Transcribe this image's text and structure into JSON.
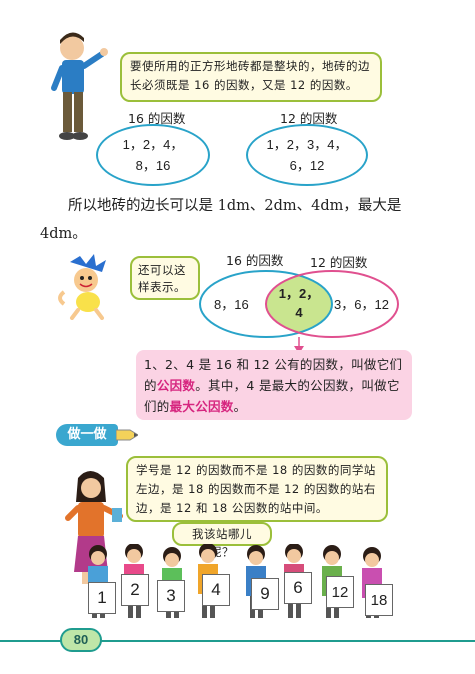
{
  "top": {
    "bubble": "要使所用的正方形地砖都是整块的，地砖的边长必须既是 16 的因数，又是 12 的因数。",
    "caption16": "16 的因数",
    "caption12": "12 的因数",
    "set16_line1": "1，2，4，",
    "set16_line2": "8，16",
    "set12_line1": "1，2，3，4，",
    "set12_line2": "6，12"
  },
  "paragraph": {
    "line1": "所以地砖的边长可以是 1dm、2dm、4dm，最大是",
    "line2": "4dm。"
  },
  "venn": {
    "bubble_line1": "还可以这",
    "bubble_line2": "样表示。",
    "label16": "16 的因数",
    "label12": "12 的因数",
    "left_only": "8，16",
    "common_line1": "1，2，",
    "common_line2": "4",
    "right_only": "3，6，12"
  },
  "definition": {
    "part1": "1、2、4 是 16 和 12 公有的因数，叫做它们的",
    "term1": "公因数",
    "part2": "。其中，4 是最大的公因数，叫做它们的",
    "term2": "最大公因数",
    "part3": "。"
  },
  "exercise": {
    "label": "做一做",
    "bubble": "学号是 12 的因数而不是 18 的因数的同学站左边，是 18 的因数而不是 12 的因数的站右边，是 12 和 18 公因数的站中间。",
    "question": "我该站哪儿呢？",
    "cards": [
      "1",
      "2",
      "3",
      "4",
      "9",
      "6",
      "12",
      "18"
    ]
  },
  "page_number": "80",
  "colors": {
    "ellipse_blue": "#29a3c9",
    "venn_pink": "#e0508f",
    "definition_bg": "#fbd3e4",
    "term_pink": "#d6267f",
    "bubble_green": "#9bbf3a",
    "teal": "#1f9c8f"
  }
}
